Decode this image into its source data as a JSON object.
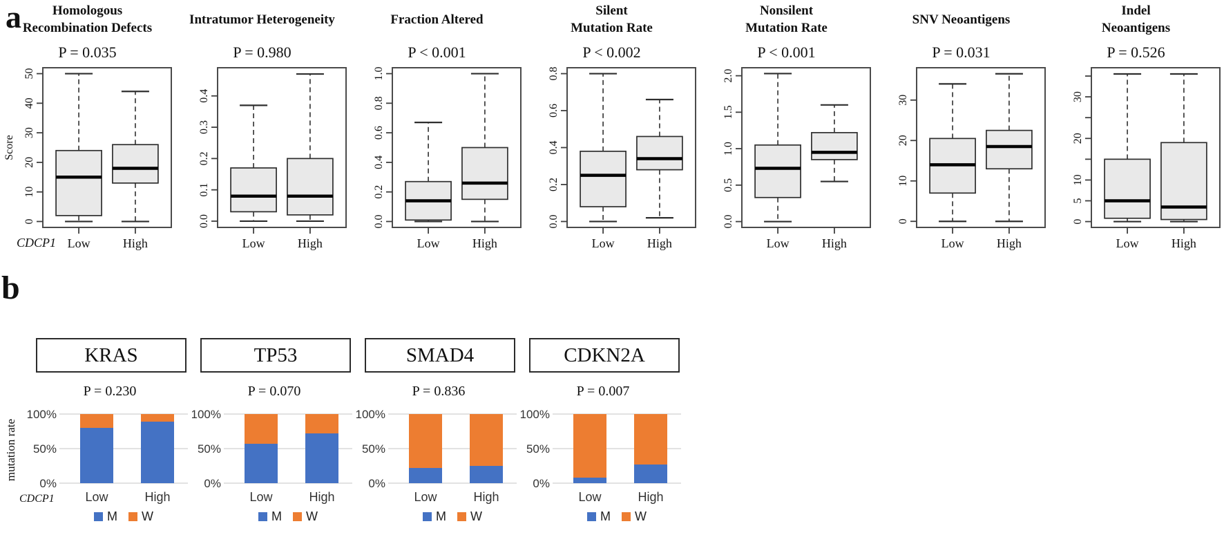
{
  "figure": {
    "panel_a": {
      "label": "a",
      "axis_gene_label": "CDCP1"
    },
    "panel_b": {
      "label": "b",
      "axis_gene_label": "CDCP1",
      "ylabel": "mutation rate"
    }
  },
  "colors": {
    "mutant_blue": "#4472C4",
    "wildtype_orange": "#ED7D31",
    "box_fill": "#E9E9E9",
    "box_stroke": "#2E2E2E",
    "gridline_gray": "#D9D9D9"
  },
  "chart_data": {
    "boxplots": {
      "type": "boxplot",
      "categories": [
        "Low",
        "High"
      ],
      "plots": [
        {
          "id": "homologous-recombination-defects",
          "title_lines": [
            "Homologous",
            "Recombination Defects"
          ],
          "p_label": "P = 0.035",
          "ylabel": "Score",
          "ylim": [
            -2,
            52
          ],
          "yticks": [
            {
              "v": 0,
              "label": "0"
            },
            {
              "v": 10,
              "label": "10"
            },
            {
              "v": 20,
              "label": "20"
            },
            {
              "v": 30,
              "label": "30"
            },
            {
              "v": 40,
              "label": "40"
            },
            {
              "v": 50,
              "label": "50"
            }
          ],
          "minor_ticks": [],
          "groups": [
            {
              "name": "Low",
              "whisker_low": 0,
              "q1": 2,
              "median": 15,
              "q3": 24,
              "whisker_high": 50
            },
            {
              "name": "High",
              "whisker_low": 0,
              "q1": 13,
              "median": 18,
              "q3": 26,
              "whisker_high": 44
            }
          ]
        },
        {
          "id": "intratumor-heterogeneity",
          "title_lines": [
            "Intratumor Heterogeneity"
          ],
          "p_label": "P = 0.980",
          "ylabel": "",
          "ylim": [
            -0.02,
            0.49
          ],
          "yticks": [
            {
              "v": 0,
              "label": "0.0"
            },
            {
              "v": 0.1,
              "label": "0.1"
            },
            {
              "v": 0.2,
              "label": "0.2"
            },
            {
              "v": 0.3,
              "label": "0.3"
            },
            {
              "v": 0.4,
              "label": "0.4"
            }
          ],
          "minor_ticks": [],
          "groups": [
            {
              "name": "Low",
              "whisker_low": 0,
              "q1": 0.03,
              "median": 0.08,
              "q3": 0.17,
              "whisker_high": 0.37
            },
            {
              "name": "High",
              "whisker_low": 0,
              "q1": 0.02,
              "median": 0.08,
              "q3": 0.2,
              "whisker_high": 0.47
            }
          ]
        },
        {
          "id": "fraction-altered",
          "title_lines": [
            "Fraction Altered"
          ],
          "p_label": "P < 0.001",
          "ylabel": "",
          "ylim": [
            -0.04,
            1.04
          ],
          "yticks": [
            {
              "v": 0,
              "label": "0.0"
            },
            {
              "v": 0.2,
              "label": "0.2"
            },
            {
              "v": 0.4,
              "label": "0.4"
            },
            {
              "v": 0.6,
              "label": "0.6"
            },
            {
              "v": 0.8,
              "label": "0.8"
            },
            {
              "v": 1.0,
              "label": "1.0"
            }
          ],
          "minor_ticks": [],
          "groups": [
            {
              "name": "Low",
              "whisker_low": 0,
              "q1": 0.01,
              "median": 0.14,
              "q3": 0.27,
              "whisker_high": 0.67
            },
            {
              "name": "High",
              "whisker_low": 0,
              "q1": 0.15,
              "median": 0.26,
              "q3": 0.5,
              "whisker_high": 1.0
            }
          ]
        },
        {
          "id": "silent-mutation-rate",
          "title_lines": [
            "Silent",
            "Mutation Rate"
          ],
          "p_label": "P < 0.002",
          "ylabel": "",
          "ylim": [
            -0.032,
            0.832
          ],
          "yticks": [
            {
              "v": 0,
              "label": "0.0"
            },
            {
              "v": 0.2,
              "label": "0.2"
            },
            {
              "v": 0.4,
              "label": "0.4"
            },
            {
              "v": 0.6,
              "label": "0.6"
            },
            {
              "v": 0.8,
              "label": "0.8"
            }
          ],
          "minor_ticks": [],
          "groups": [
            {
              "name": "Low",
              "whisker_low": 0,
              "q1": 0.08,
              "median": 0.25,
              "q3": 0.38,
              "whisker_high": 0.8
            },
            {
              "name": "High",
              "whisker_low": 0.02,
              "q1": 0.28,
              "median": 0.34,
              "q3": 0.46,
              "whisker_high": 0.66
            }
          ]
        },
        {
          "id": "nonsilent-mutation-rate",
          "title_lines": [
            "Nonsilent",
            "Mutation Rate"
          ],
          "p_label": "P < 0.001",
          "ylabel": "",
          "ylim": [
            -0.08,
            2.11
          ],
          "yticks": [
            {
              "v": 0,
              "label": "0.0"
            },
            {
              "v": 0.5,
              "label": "0.5"
            },
            {
              "v": 1.0,
              "label": "1.0"
            },
            {
              "v": 1.5,
              "label": "1.5"
            },
            {
              "v": 2.0,
              "label": "2.0"
            }
          ],
          "minor_ticks": [],
          "groups": [
            {
              "name": "Low",
              "whisker_low": 0,
              "q1": 0.33,
              "median": 0.73,
              "q3": 1.05,
              "whisker_high": 2.03
            },
            {
              "name": "High",
              "whisker_low": 0.55,
              "q1": 0.85,
              "median": 0.95,
              "q3": 1.22,
              "whisker_high": 1.6
            }
          ]
        },
        {
          "id": "snv-neoantigens",
          "title_lines": [
            "SNV Neoantigens"
          ],
          "p_label": "P = 0.031",
          "ylabel": "",
          "ylim": [
            -1.5,
            38
          ],
          "yticks": [
            {
              "v": 0,
              "label": "0"
            },
            {
              "v": 10,
              "label": "10"
            },
            {
              "v": 20,
              "label": "20"
            },
            {
              "v": 30,
              "label": "30"
            }
          ],
          "minor_ticks": [],
          "groups": [
            {
              "name": "Low",
              "whisker_low": 0,
              "q1": 7,
              "median": 14,
              "q3": 20.5,
              "whisker_high": 34
            },
            {
              "name": "High",
              "whisker_low": 0,
              "q1": 13,
              "median": 18.5,
              "q3": 22.5,
              "whisker_high": 36.5
            }
          ]
        },
        {
          "id": "indel-neoantigens",
          "title_lines": [
            "Indel",
            "Neoantigens"
          ],
          "p_label": "P = 0.526",
          "ylabel": "",
          "ylim": [
            -1.4,
            37
          ],
          "yticks": [
            {
              "v": 0,
              "label": "0"
            },
            {
              "v": 5,
              "label": "5"
            },
            {
              "v": 10,
              "label": "10"
            },
            {
              "v": 20,
              "label": "20"
            },
            {
              "v": 30,
              "label": "30"
            }
          ],
          "minor_ticks": [
            15,
            25,
            35
          ],
          "groups": [
            {
              "name": "Low",
              "whisker_low": 0,
              "q1": 0.8,
              "median": 5,
              "q3": 15,
              "whisker_high": 35.5
            },
            {
              "name": "High",
              "whisker_low": 0,
              "q1": 0.5,
              "median": 3.5,
              "q3": 19,
              "whisker_high": 35.5
            }
          ]
        }
      ]
    },
    "stacked_bars": {
      "type": "bar",
      "stacked": true,
      "categories": [
        "Low",
        "High"
      ],
      "ylabel": "mutation rate",
      "yticks": [
        {
          "v": 0,
          "label": "0%"
        },
        {
          "v": 50,
          "label": "50%"
        },
        {
          "v": 100,
          "label": "100%"
        }
      ],
      "legend": [
        "M",
        "W"
      ],
      "series_colors": {
        "M": "#4472C4",
        "W": "#ED7D31"
      },
      "charts": [
        {
          "gene": "KRAS",
          "p_label": "P = 0.230",
          "series": [
            {
              "name": "M",
              "values": [
                80,
                89
              ]
            },
            {
              "name": "W",
              "values": [
                20,
                11
              ]
            }
          ]
        },
        {
          "gene": "TP53",
          "p_label": "P = 0.070",
          "series": [
            {
              "name": "M",
              "values": [
                57,
                72
              ]
            },
            {
              "name": "W",
              "values": [
                43,
                28
              ]
            }
          ]
        },
        {
          "gene": "SMAD4",
          "p_label": "P = 0.836",
          "series": [
            {
              "name": "M",
              "values": [
                22,
                25
              ]
            },
            {
              "name": "W",
              "values": [
                78,
                75
              ]
            }
          ]
        },
        {
          "gene": "CDKN2A",
          "p_label": "P = 0.007",
          "series": [
            {
              "name": "M",
              "values": [
                8,
                27
              ]
            },
            {
              "name": "W",
              "values": [
                92,
                73
              ]
            }
          ]
        }
      ]
    }
  }
}
